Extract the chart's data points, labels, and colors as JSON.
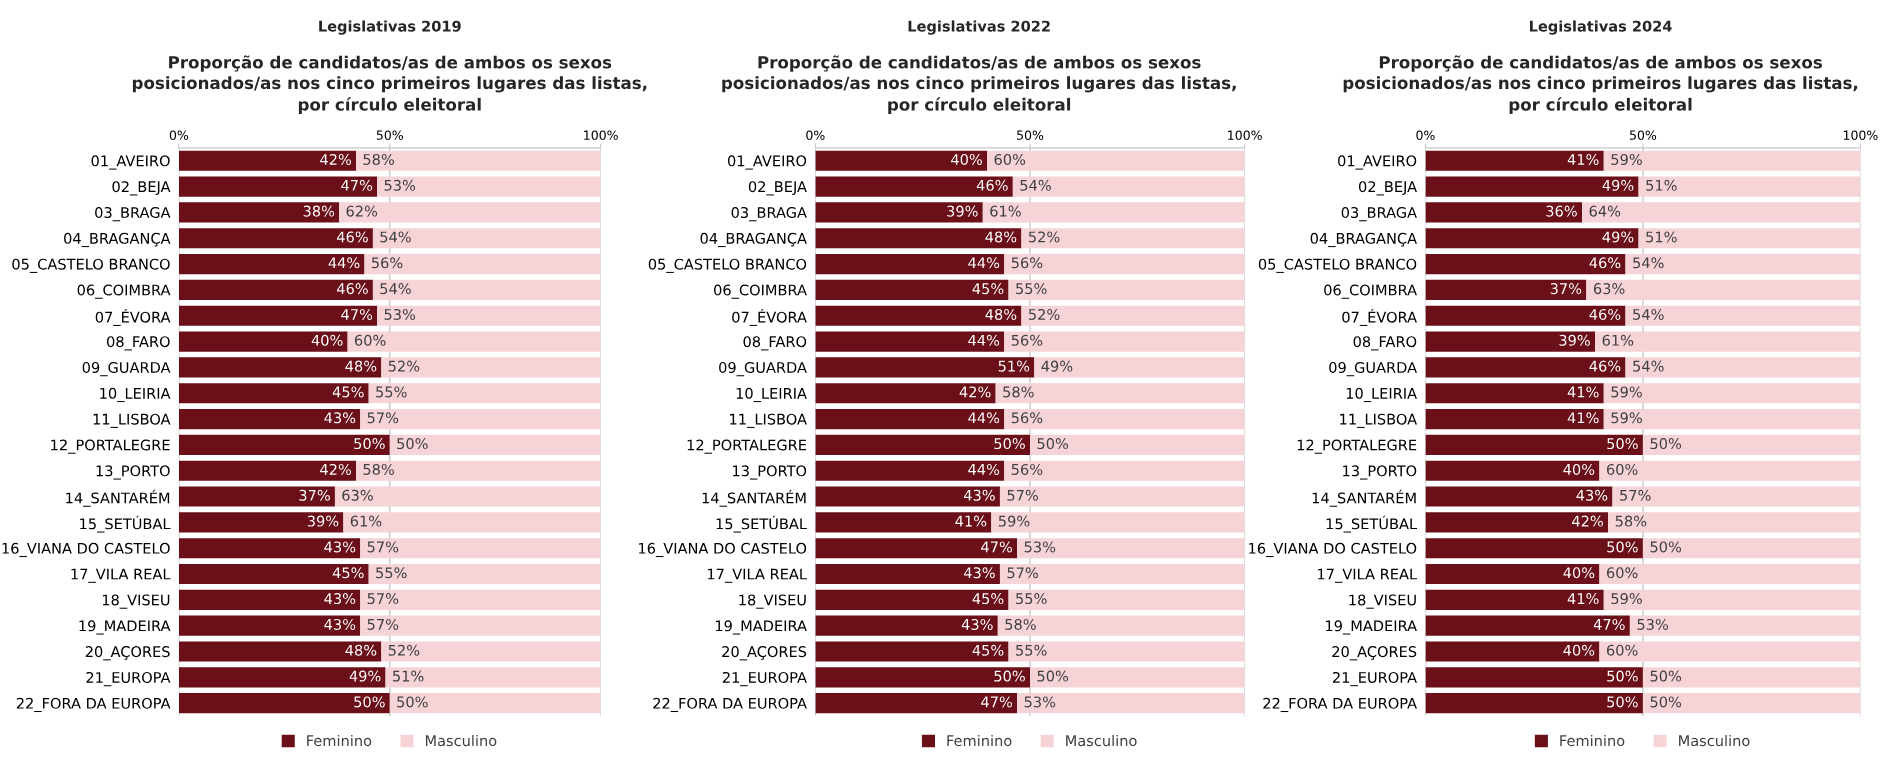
{
  "chart_data": [
    {
      "type": "bar",
      "orientation": "horizontal",
      "stacked": true,
      "title": "Legislativas 2019",
      "subtitle": "Proporção de candidatos/as de ambos os sexos\nposicionados/as nos cinco primeiros lugares das listas,\npor círculo eleitoral",
      "categories": [
        "01_AVEIRO",
        "02_BEJA",
        "03_BRAGA",
        "04_BRAGANÇA",
        "05_CASTELO BRANCO",
        "06_COIMBRA",
        "07_ÉVORA",
        "08_FARO",
        "09_GUARDA",
        "10_LEIRIA",
        "11_LISBOA",
        "12_PORTALEGRE",
        "13_PORTO",
        "14_SANTARÉM",
        "15_SETÚBAL",
        "16_VIANA DO CASTELO",
        "17_VILA REAL",
        "18_VISEU",
        "19_MADEIRA",
        "20_AÇORES",
        "21_EUROPA",
        "22_FORA DA EUROPA"
      ],
      "series": [
        {
          "name": "Feminino",
          "color": "#6b0f18",
          "values": [
            42,
            47,
            38,
            46,
            44,
            46,
            47,
            40,
            48,
            45,
            43,
            50,
            42,
            37,
            39,
            43,
            45,
            43,
            43,
            48,
            49,
            50
          ],
          "value_labels": [
            "42%",
            "47%",
            "38%",
            "46%",
            "44%",
            "46%",
            "47%",
            "40%",
            "48%",
            "45%",
            "43%",
            "50%",
            "42%",
            "37%",
            "39%",
            "43%",
            "45%",
            "43%",
            "43%",
            "48%",
            "49%",
            "50%"
          ]
        },
        {
          "name": "Masculino",
          "color": "#f6d3d7",
          "values": [
            58,
            53,
            62,
            54,
            56,
            54,
            53,
            60,
            52,
            55,
            57,
            50,
            58,
            63,
            61,
            57,
            55,
            57,
            57,
            52,
            51,
            50
          ],
          "value_labels": [
            "58%",
            "53%",
            "62%",
            "54%",
            "56%",
            "54%",
            "53%",
            "60%",
            "52%",
            "55%",
            "57%",
            "50%",
            "58%",
            "63%",
            "61%",
            "57%",
            "55%",
            "57%",
            "57%",
            "52%",
            "51%",
            "50%"
          ]
        }
      ],
      "xlim": [
        0,
        100
      ],
      "xticks": [
        {
          "value": 0,
          "label": "0%"
        },
        {
          "value": 50,
          "label": "50%"
        },
        {
          "value": 100,
          "label": "100%"
        }
      ],
      "grid": "x",
      "legend": "bottom"
    },
    {
      "type": "bar",
      "orientation": "horizontal",
      "stacked": true,
      "title": "Legislativas 2022",
      "subtitle": "Proporção de candidatos/as de ambos os sexos\nposicionados/as nos cinco primeiros lugares das listas,\npor círculo eleitoral",
      "categories": [
        "01_AVEIRO",
        "02_BEJA",
        "03_BRAGA",
        "04_BRAGANÇA",
        "05_CASTELO BRANCO",
        "06_COIMBRA",
        "07_ÉVORA",
        "08_FARO",
        "09_GUARDA",
        "10_LEIRIA",
        "11_LISBOA",
        "12_PORTALEGRE",
        "13_PORTO",
        "14_SANTARÉM",
        "15_SETÚBAL",
        "16_VIANA DO CASTELO",
        "17_VILA REAL",
        "18_VISEU",
        "19_MADEIRA",
        "20_AÇORES",
        "21_EUROPA",
        "22_FORA DA EUROPA"
      ],
      "series": [
        {
          "name": "Feminino",
          "color": "#6b0f18",
          "values": [
            40,
            46,
            39,
            48,
            44,
            45,
            48,
            44,
            51,
            42,
            44,
            50,
            44,
            43,
            41,
            47,
            43,
            45,
            42.5,
            45,
            50,
            47
          ],
          "value_labels": [
            "40%",
            "46%",
            "39%",
            "48%",
            "44%",
            "45%",
            "48%",
            "44%",
            "51%",
            "42%",
            "44%",
            "50%",
            "44%",
            "43%",
            "41%",
            "47%",
            "43%",
            "45%",
            "43%",
            "45%",
            "50%",
            "47%"
          ]
        },
        {
          "name": "Masculino",
          "color": "#f6d3d7",
          "values": [
            60,
            54,
            61,
            52,
            56,
            55,
            52,
            56,
            49,
            58,
            56,
            50,
            56,
            57,
            59,
            53,
            57,
            55,
            57.5,
            55,
            50,
            53
          ],
          "value_labels": [
            "60%",
            "54%",
            "61%",
            "52%",
            "56%",
            "55%",
            "52%",
            "56%",
            "49%",
            "58%",
            "56%",
            "50%",
            "56%",
            "57%",
            "59%",
            "53%",
            "57%",
            "55%",
            "58%",
            "55%",
            "50%",
            "53%"
          ]
        }
      ],
      "xlim": [
        0,
        100
      ],
      "xticks": [
        {
          "value": 0,
          "label": "0%"
        },
        {
          "value": 50,
          "label": "50%"
        },
        {
          "value": 100,
          "label": "100%"
        }
      ],
      "grid": "x",
      "legend": "bottom"
    },
    {
      "type": "bar",
      "orientation": "horizontal",
      "stacked": true,
      "title": "Legislativas 2024",
      "subtitle": "Proporção de candidatos/as de ambos os sexos\nposicionados/as nos cinco primeiros lugares das listas,\npor círculo eleitoral",
      "categories": [
        "01_AVEIRO",
        "02_BEJA",
        "03_BRAGA",
        "04_BRAGANÇA",
        "05_CASTELO BRANCO",
        "06_COIMBRA",
        "07_ÉVORA",
        "08_FARO",
        "09_GUARDA",
        "10_LEIRIA",
        "11_LISBOA",
        "12_PORTALEGRE",
        "13_PORTO",
        "14_SANTARÉM",
        "15_SETÚBAL",
        "16_VIANA DO CASTELO",
        "17_VILA REAL",
        "18_VISEU",
        "19_MADEIRA",
        "20_AÇORES",
        "21_EUROPA",
        "22_FORA DA EUROPA"
      ],
      "series": [
        {
          "name": "Feminino",
          "color": "#6b0f18",
          "values": [
            41,
            49,
            36,
            49,
            46,
            37,
            46,
            39,
            46,
            41,
            41,
            50,
            40,
            43,
            42,
            50,
            40,
            41,
            47,
            40,
            50,
            50
          ],
          "value_labels": [
            "41%",
            "49%",
            "36%",
            "49%",
            "46%",
            "37%",
            "46%",
            "39%",
            "46%",
            "41%",
            "41%",
            "50%",
            "40%",
            "43%",
            "42%",
            "50%",
            "40%",
            "41%",
            "47%",
            "40%",
            "50%",
            "50%"
          ]
        },
        {
          "name": "Masculino",
          "color": "#f6d3d7",
          "values": [
            59,
            51,
            64,
            51,
            54,
            63,
            54,
            61,
            54,
            59,
            59,
            50,
            60,
            57,
            58,
            50,
            60,
            59,
            53,
            60,
            50,
            50
          ],
          "value_labels": [
            "59%",
            "51%",
            "64%",
            "51%",
            "54%",
            "63%",
            "54%",
            "61%",
            "54%",
            "59%",
            "59%",
            "50%",
            "60%",
            "57%",
            "58%",
            "50%",
            "60%",
            "59%",
            "53%",
            "60%",
            "50%",
            "50%"
          ]
        }
      ],
      "xlim": [
        0,
        100
      ],
      "xticks": [
        {
          "value": 0,
          "label": "0%"
        },
        {
          "value": 50,
          "label": "50%"
        },
        {
          "value": 100,
          "label": "100%"
        }
      ],
      "grid": "x",
      "legend": "bottom"
    }
  ]
}
